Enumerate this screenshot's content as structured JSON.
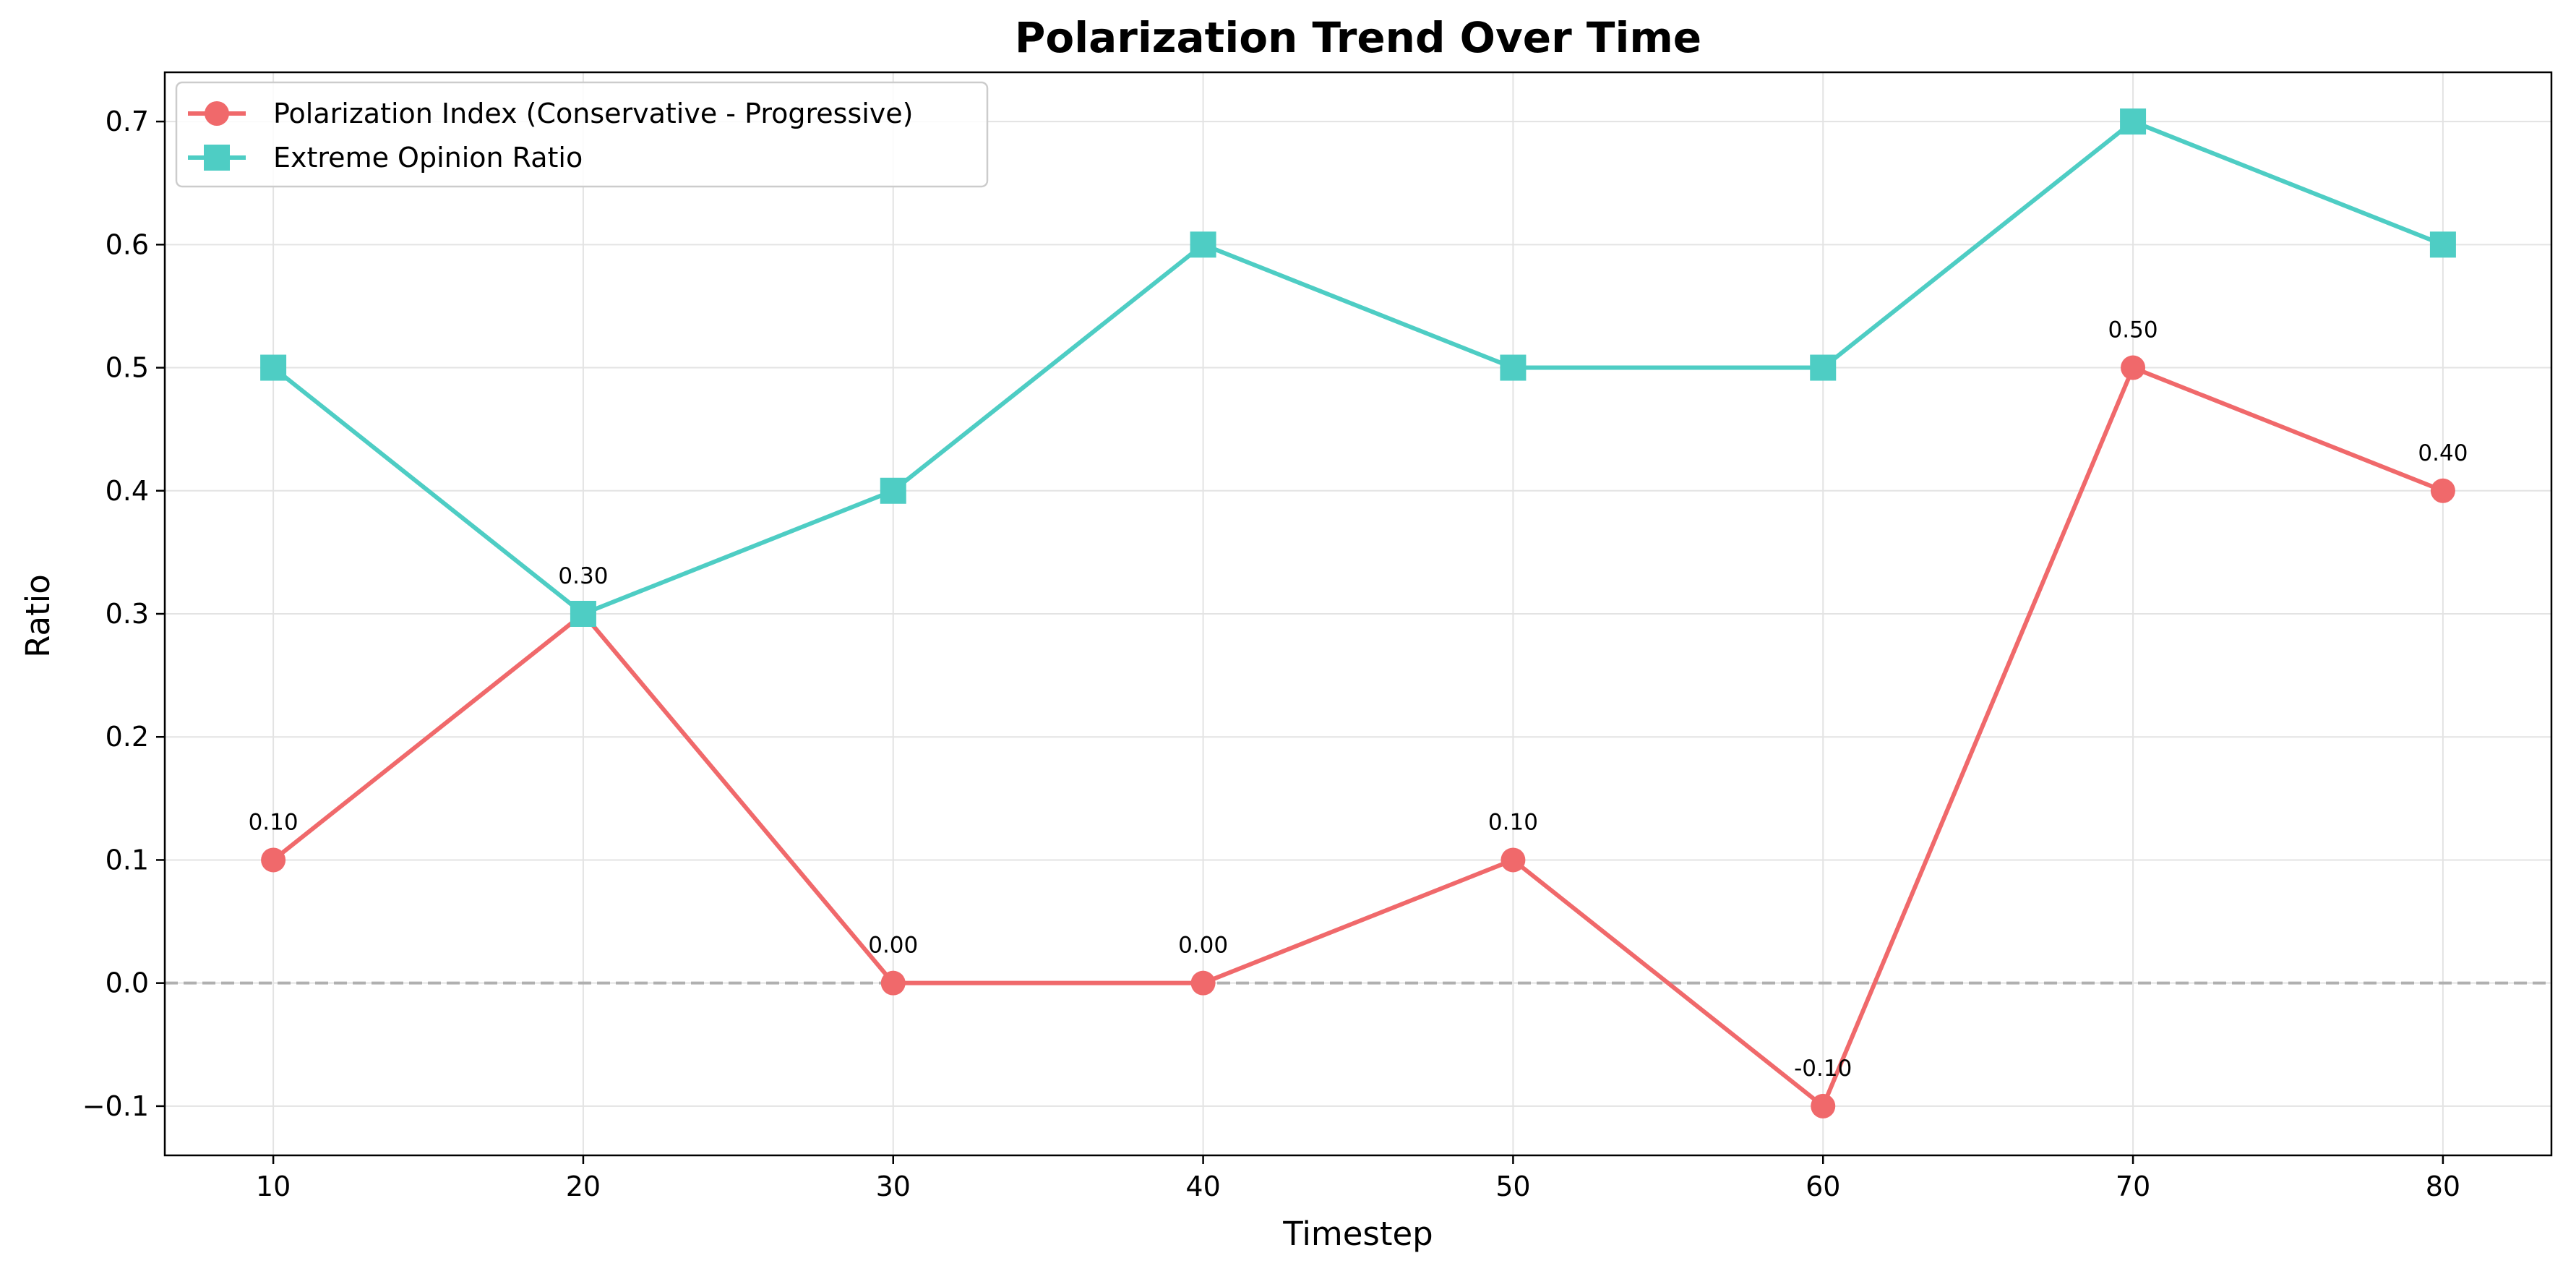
{
  "chart_data": {
    "type": "line",
    "title": "Polarization Trend Over Time",
    "xlabel": "Timestep",
    "ylabel": "Ratio",
    "x": [
      10,
      20,
      30,
      40,
      50,
      60,
      70,
      80
    ],
    "xlim": [
      6.5,
      83.5
    ],
    "ylim": [
      -0.14,
      0.74
    ],
    "xticks": [
      10,
      20,
      30,
      40,
      50,
      60,
      70,
      80
    ],
    "yticks": [
      -0.1,
      0.0,
      0.1,
      0.2,
      0.3,
      0.4,
      0.5,
      0.6,
      0.7
    ],
    "ytick_labels": [
      "−0.1",
      "0.0",
      "0.1",
      "0.2",
      "0.3",
      "0.4",
      "0.5",
      "0.6",
      "0.7"
    ],
    "grid": true,
    "reference_line": {
      "y": 0.0,
      "style": "dashed",
      "color": "#b0b0b0"
    },
    "legend": {
      "location": "top-left"
    },
    "series": [
      {
        "name": "Polarization Index (Conservative - Progressive)",
        "color": "#f0696b",
        "marker": "circle",
        "values": [
          0.1,
          0.3,
          0.0,
          0.0,
          0.1,
          -0.1,
          0.5,
          0.4
        ],
        "data_labels": [
          "0.10",
          "0.30",
          "0.00",
          "0.00",
          "0.10",
          "-0.10",
          "0.50",
          "0.40"
        ]
      },
      {
        "name": "Extreme Opinion Ratio",
        "color": "#4ecdc4",
        "marker": "square",
        "values": [
          0.5,
          0.3,
          0.4,
          0.6,
          0.5,
          0.5,
          0.7,
          0.6
        ]
      }
    ]
  }
}
